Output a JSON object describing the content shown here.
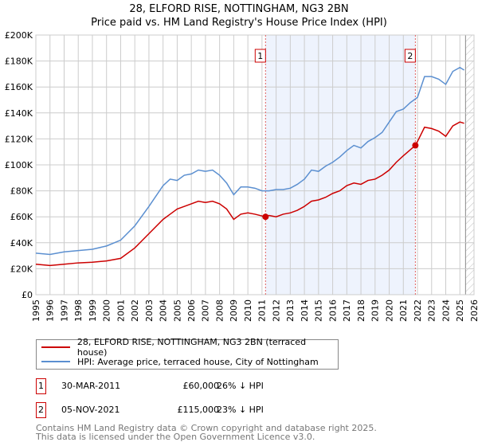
{
  "header": {
    "title": "28, ELFORD RISE, NOTTINGHAM, NG3 2BN",
    "subtitle": "Price paid vs. HM Land Registry's House Price Index (HPI)"
  },
  "chart_data": {
    "type": "line",
    "title": "28, ELFORD RISE, NOTTINGHAM, NG3 2BN",
    "subtitle": "Price paid vs. HM Land Registry's House Price Index (HPI)",
    "xlim": [
      1995,
      2026
    ],
    "ylim": [
      0,
      200000
    ],
    "x_ticks": [
      "1995",
      "1996",
      "1997",
      "1998",
      "1999",
      "2000",
      "2001",
      "2002",
      "2003",
      "2004",
      "2005",
      "2006",
      "2007",
      "2008",
      "2009",
      "2010",
      "2011",
      "2012",
      "2013",
      "2014",
      "2015",
      "2016",
      "2017",
      "2018",
      "2019",
      "2020",
      "2021",
      "2022",
      "2023",
      "2024",
      "2025",
      "2026"
    ],
    "y_ticks": [
      {
        "v": 0,
        "label": "£0"
      },
      {
        "v": 20000,
        "label": "£20K"
      },
      {
        "v": 40000,
        "label": "£40K"
      },
      {
        "v": 60000,
        "label": "£60K"
      },
      {
        "v": 80000,
        "label": "£80K"
      },
      {
        "v": 100000,
        "label": "£100K"
      },
      {
        "v": 120000,
        "label": "£120K"
      },
      {
        "v": 140000,
        "label": "£140K"
      },
      {
        "v": 160000,
        "label": "£160K"
      },
      {
        "v": 180000,
        "label": "£180K"
      },
      {
        "v": 200000,
        "label": "£200K"
      }
    ],
    "grid": true,
    "shaded_range": [
      2011.25,
      2021.85
    ],
    "forecast_hatch_from": 2025.4,
    "series": [
      {
        "name": "28, ELFORD RISE, NOTTINGHAM, NG3 2BN (terraced house)",
        "color": "#cc0000",
        "x": [
          1995,
          1996,
          1997,
          1998,
          1999,
          2000,
          2001,
          2002,
          2003,
          2004,
          2004.5,
          2005,
          2005.5,
          2006,
          2006.5,
          2007,
          2007.5,
          2008,
          2008.5,
          2009,
          2009.5,
          2010,
          2010.5,
          2011.25,
          2011.5,
          2012,
          2012.5,
          2013,
          2013.5,
          2014,
          2014.5,
          2015,
          2015.5,
          2016,
          2016.5,
          2017,
          2017.5,
          2018,
          2018.5,
          2019,
          2019.5,
          2020,
          2020.5,
          2021,
          2021.85,
          2022,
          2022.5,
          2023,
          2023.5,
          2024,
          2024.5,
          2025,
          2025.3
        ],
        "y": [
          23500,
          22500,
          23500,
          24500,
          25000,
          26000,
          28000,
          36000,
          47000,
          58000,
          62000,
          66000,
          68000,
          70000,
          72000,
          71000,
          72000,
          70000,
          66000,
          58000,
          62000,
          63000,
          62000,
          60000,
          61000,
          60000,
          62000,
          63000,
          65000,
          68000,
          72000,
          73000,
          75000,
          78000,
          80000,
          84000,
          86000,
          85000,
          88000,
          89000,
          92000,
          96000,
          102000,
          107000,
          115000,
          118000,
          129000,
          128000,
          126000,
          122000,
          130000,
          133000,
          132000
        ]
      },
      {
        "name": "HPI: Average price, terraced house, City of Nottingham",
        "color": "#5b8fd0",
        "x": [
          1995,
          1996,
          1997,
          1998,
          1999,
          2000,
          2001,
          2002,
          2003,
          2004,
          2004.5,
          2005,
          2005.5,
          2006,
          2006.5,
          2007,
          2007.5,
          2008,
          2008.5,
          2009,
          2009.5,
          2010,
          2010.5,
          2011,
          2011.5,
          2012,
          2012.5,
          2013,
          2013.5,
          2014,
          2014.5,
          2015,
          2015.5,
          2016,
          2016.5,
          2017,
          2017.5,
          2018,
          2018.5,
          2019,
          2019.5,
          2020,
          2020.5,
          2021,
          2021.5,
          2022,
          2022.5,
          2023,
          2023.5,
          2024,
          2024.5,
          2025,
          2025.3
        ],
        "y": [
          32000,
          31000,
          33000,
          34000,
          35000,
          37500,
          42000,
          53000,
          68000,
          84000,
          89000,
          88000,
          92000,
          93000,
          96000,
          95000,
          96000,
          92000,
          86000,
          77000,
          83000,
          83000,
          82000,
          80000,
          80000,
          81000,
          81000,
          82000,
          85000,
          89000,
          96000,
          95000,
          99000,
          102000,
          106000,
          111000,
          115000,
          113000,
          118000,
          121000,
          125000,
          133000,
          141000,
          143000,
          148000,
          152000,
          168000,
          168000,
          166000,
          162000,
          172000,
          175000,
          173000
        ]
      }
    ],
    "annotations": [
      {
        "label": "1",
        "x": 2011.25,
        "y": 60000
      },
      {
        "label": "2",
        "x": 2021.85,
        "y": 115000
      }
    ]
  },
  "legend": {
    "items": [
      {
        "label": "28, ELFORD RISE, NOTTINGHAM, NG3 2BN (terraced house)",
        "color": "#cc0000"
      },
      {
        "label": "HPI: Average price, terraced house, City of Nottingham",
        "color": "#5b8fd0"
      }
    ]
  },
  "transactions": [
    {
      "num": "1",
      "date": "30-MAR-2011",
      "price": "£60,000",
      "delta": "26% ↓ HPI"
    },
    {
      "num": "2",
      "date": "05-NOV-2021",
      "price": "£115,000",
      "delta": "23% ↓ HPI"
    }
  ],
  "footer": {
    "line1": "Contains HM Land Registry data © Crown copyright and database right 2025.",
    "line2": "This data is licensed under the Open Government Licence v3.0."
  }
}
